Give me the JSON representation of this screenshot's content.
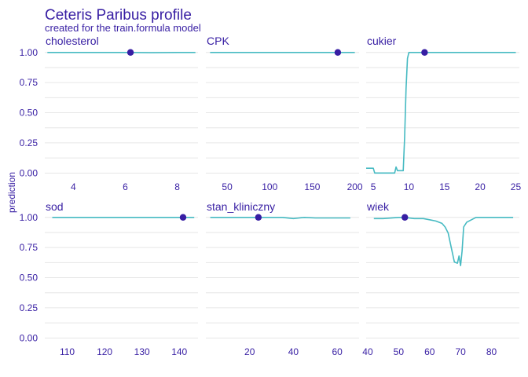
{
  "chart_data": {
    "type": "line",
    "title": "Ceteris Paribus profile",
    "subtitle": "created for the train.formula model",
    "ylabel": "prediction",
    "ylim": [
      -0.05,
      1.07
    ],
    "yticks": [
      0.0,
      0.25,
      0.5,
      0.75,
      1.0
    ],
    "ytick_labels": [
      "0.00",
      "0.25",
      "0.50",
      "0.75",
      "1.00"
    ],
    "line_color": "#46bac2",
    "point_color": "#371ea3",
    "grid": true,
    "panels": [
      {
        "name": "cholesterol",
        "xlim": [
          2.9,
          8.8
        ],
        "xticks": [
          4,
          6,
          8
        ],
        "xtick_labels": [
          "4",
          "6",
          "8"
        ],
        "x": [
          3.0,
          4.0,
          5.0,
          6.0,
          6.2,
          7.0,
          8.0,
          8.7
        ],
        "y": [
          1.0,
          1.0,
          1.0,
          1.0,
          1.0,
          0.998,
          1.0,
          1.0
        ],
        "point": [
          6.2,
          1.0
        ]
      },
      {
        "name": "CPK",
        "xlim": [
          25,
          205
        ],
        "xticks": [
          50,
          100,
          150,
          200
        ],
        "xtick_labels": [
          "50",
          "100",
          "150",
          "200"
        ],
        "x": [
          30,
          60,
          100,
          140,
          180,
          200
        ],
        "y": [
          1.0,
          1.0,
          1.0,
          1.0,
          1.0,
          1.0
        ],
        "point": [
          180,
          1.0
        ]
      },
      {
        "name": "cukier",
        "xlim": [
          4,
          25.5
        ],
        "xticks": [
          5,
          10,
          15,
          20,
          25
        ],
        "xtick_labels": [
          "5",
          "10",
          "15",
          "20",
          "25"
        ],
        "x": [
          4.0,
          5.0,
          5.2,
          6.0,
          7.0,
          7.5,
          8.0,
          8.2,
          8.4,
          8.8,
          9.2,
          9.4,
          9.6,
          9.8,
          10.0,
          12.0,
          15.0,
          20.0,
          25.0
        ],
        "y": [
          0.04,
          0.04,
          0.0,
          0.0,
          0.0,
          0.0,
          0.0,
          0.05,
          0.02,
          0.02,
          0.02,
          0.3,
          0.7,
          0.95,
          1.0,
          1.0,
          1.0,
          1.0,
          1.0
        ],
        "point": [
          12.2,
          1.0
        ]
      },
      {
        "name": "sod",
        "xlim": [
          104,
          145
        ],
        "xticks": [
          110,
          120,
          130,
          140
        ],
        "xtick_labels": [
          "110",
          "120",
          "130",
          "140"
        ],
        "x": [
          106,
          115,
          125,
          135,
          141,
          144
        ],
        "y": [
          1.0,
          1.0,
          1.0,
          1.0,
          1.0,
          1.0
        ],
        "point": [
          141,
          1.0
        ]
      },
      {
        "name": "stan_kliniczny",
        "xlim": [
          0,
          70
        ],
        "xticks": [
          20,
          40,
          60
        ],
        "xtick_labels": [
          "20",
          "40",
          "60"
        ],
        "x": [
          2,
          10,
          20,
          30,
          35,
          40,
          45,
          50,
          60,
          66
        ],
        "y": [
          1.0,
          1.0,
          1.0,
          1.0,
          1.0,
          0.99,
          1.0,
          0.995,
          0.995,
          0.995
        ],
        "point": [
          24,
          1.0
        ]
      },
      {
        "name": "wiek",
        "xlim": [
          39.5,
          89
        ],
        "xticks": [
          40,
          50,
          60,
          70,
          80
        ],
        "xtick_labels": [
          "40",
          "50",
          "60",
          "70",
          "80"
        ],
        "x": [
          42,
          45,
          50,
          52,
          55,
          58,
          60,
          62,
          64,
          65,
          66,
          67,
          68,
          69,
          69.5,
          70,
          70.5,
          71,
          72,
          75,
          80,
          87
        ],
        "y": [
          0.99,
          0.99,
          1.0,
          1.0,
          0.99,
          0.99,
          0.98,
          0.97,
          0.95,
          0.92,
          0.87,
          0.75,
          0.63,
          0.62,
          0.68,
          0.6,
          0.72,
          0.92,
          0.96,
          1.0,
          1.0,
          1.0
        ],
        "point": [
          52,
          1.0
        ]
      }
    ]
  }
}
